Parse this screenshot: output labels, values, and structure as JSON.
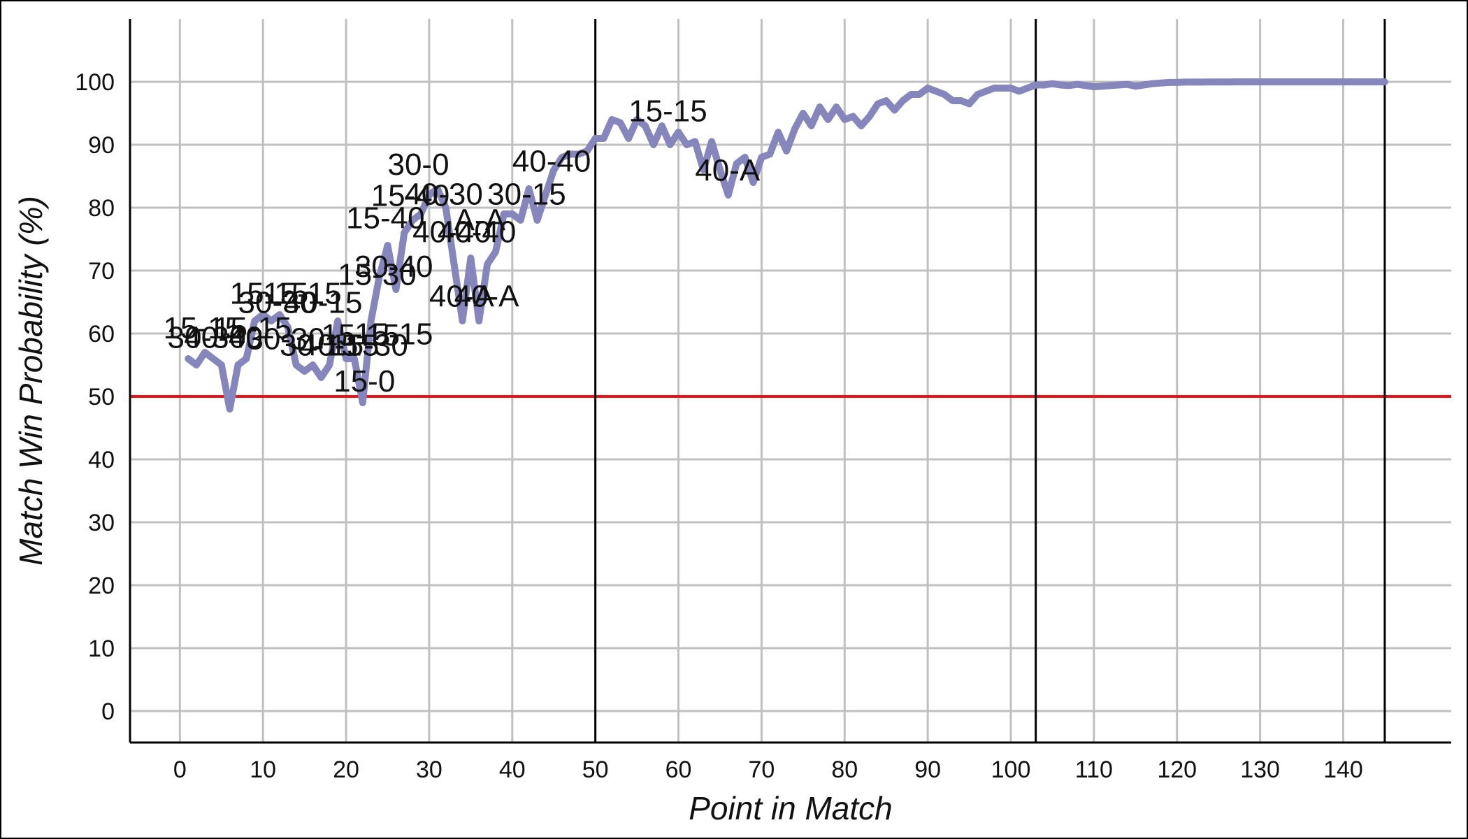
{
  "colors": {
    "background": "#ffffff",
    "grid": "#c0c0c0",
    "axis": "#000000",
    "line": "#8686bd",
    "reference_line": "#e8141b",
    "set_divider": "#000000"
  },
  "chart_data": {
    "type": "line",
    "title": "",
    "xlabel": "Point in Match",
    "ylabel": "Match Win Probability (%)",
    "xlim": [
      -6,
      153
    ],
    "ylim": [
      -5,
      110
    ],
    "xticks": [
      0,
      10,
      20,
      30,
      40,
      50,
      60,
      70,
      80,
      90,
      100,
      110,
      120,
      130,
      140
    ],
    "yticks": [
      0,
      10,
      20,
      30,
      40,
      50,
      60,
      70,
      80,
      90,
      100
    ],
    "grid": true,
    "legend": "none",
    "reference_line": {
      "y": 50
    },
    "set_dividers": [
      50,
      103,
      145
    ],
    "series": [
      {
        "x": [
          1,
          2,
          3,
          4,
          5,
          6,
          7,
          8,
          9,
          10,
          11,
          12,
          13,
          14,
          15,
          16,
          17,
          18,
          19,
          20,
          21,
          22,
          23,
          24,
          25,
          26,
          27,
          28,
          29,
          30,
          31,
          32,
          33,
          34,
          35,
          36,
          37,
          38,
          39,
          40,
          41,
          42,
          43,
          44,
          45,
          46,
          47,
          48,
          49,
          50,
          51,
          52,
          53,
          54,
          55,
          56,
          57,
          58,
          59,
          60,
          61,
          62,
          63,
          64,
          65,
          66,
          67,
          68,
          69,
          70,
          71,
          72,
          73,
          74,
          75,
          76,
          77,
          78,
          79,
          80,
          81,
          82,
          83,
          84,
          85,
          86,
          87,
          88,
          89,
          90,
          91,
          92,
          93,
          94,
          95,
          96,
          97,
          98,
          99,
          100,
          101,
          102,
          103,
          104,
          105,
          106,
          107,
          108,
          109,
          110,
          111,
          112,
          113,
          114,
          115,
          116,
          117,
          118,
          119,
          120,
          121,
          122,
          123,
          124,
          125,
          126,
          127,
          128,
          129,
          130,
          131,
          132,
          133,
          134,
          135,
          136,
          137,
          138,
          139,
          140,
          141,
          142,
          143,
          144,
          145
        ],
        "values": [
          56,
          55,
          57,
          56,
          55,
          48,
          55,
          56,
          62,
          63,
          62,
          63,
          61,
          55,
          54,
          55,
          53,
          55,
          62,
          56,
          56,
          49,
          62,
          69,
          74,
          67,
          76,
          78,
          79,
          82,
          83,
          80,
          71,
          62,
          72,
          62,
          71,
          73,
          79,
          79,
          78,
          83,
          78,
          82,
          86,
          88,
          88.5,
          88.5,
          89,
          91,
          91,
          94,
          93.5,
          91,
          94,
          93,
          90,
          93,
          90,
          92,
          90,
          90.5,
          86,
          90.5,
          86,
          82,
          87,
          88,
          84,
          88,
          88.5,
          92,
          89,
          92.5,
          95,
          93,
          96,
          94,
          96,
          94,
          94.5,
          93,
          94.5,
          96.5,
          97,
          95.5,
          97,
          98,
          98,
          99,
          98.5,
          98,
          97,
          97,
          96.5,
          98,
          98.5,
          99,
          99,
          99,
          98.5,
          99,
          99.5,
          99.5,
          99.7,
          99.5,
          99.4,
          99.6,
          99.4,
          99.2,
          99.3,
          99.4,
          99.5,
          99.6,
          99.3,
          99.5,
          99.7,
          99.8,
          99.9,
          99.9,
          99.95,
          99.95,
          99.95,
          99.98,
          99.98,
          99.98,
          99.99,
          99.99,
          99.99,
          99.99,
          99.99,
          99.99,
          99.99,
          99.99,
          99.99,
          99.99,
          99.99,
          99.99,
          99.99,
          99.99,
          99.99,
          99.99,
          99.99,
          99.99,
          99.99
        ]
      }
    ],
    "annotations": [
      {
        "text": "15-15",
        "x": -2,
        "y": 59.2
      },
      {
        "text": "30-30",
        "x": -1.5,
        "y": 57.7
      },
      {
        "text": "40-40",
        "x": 0.5,
        "y": 57.7
      },
      {
        "text": "15-15",
        "x": 4,
        "y": 59.2
      },
      {
        "text": "30-30",
        "x": 8,
        "y": 57.5
      },
      {
        "text": "15-15",
        "x": 6,
        "y": 64.7
      },
      {
        "text": "30-30",
        "x": 7,
        "y": 63.3
      },
      {
        "text": "15-15",
        "x": 10,
        "y": 64.7
      },
      {
        "text": "40-15",
        "x": 12.5,
        "y": 63.3
      },
      {
        "text": "30-15",
        "x": 12,
        "y": 56.5
      },
      {
        "text": "40-15",
        "x": 14.5,
        "y": 56.5
      },
      {
        "text": "15-15",
        "x": 17,
        "y": 58.1
      },
      {
        "text": "15-30",
        "x": 18,
        "y": 56.5
      },
      {
        "text": "15-15",
        "x": 21,
        "y": 58.3
      },
      {
        "text": "15-0",
        "x": 18.5,
        "y": 50.8
      },
      {
        "text": "15-30",
        "x": 19,
        "y": 67.7
      },
      {
        "text": "30-40",
        "x": 21,
        "y": 69.0
      },
      {
        "text": "15-40",
        "x": 20,
        "y": 76.7
      },
      {
        "text": "15-40",
        "x": 23,
        "y": 80.3
      },
      {
        "text": "30-0",
        "x": 25,
        "y": 85.2
      },
      {
        "text": "40-30",
        "x": 27,
        "y": 80.5
      },
      {
        "text": "40-40",
        "x": 28,
        "y": 74.5
      },
      {
        "text": "40-40",
        "x": 31,
        "y": 74.5
      },
      {
        "text": "A-A",
        "x": 33,
        "y": 76.4
      },
      {
        "text": "40-A",
        "x": 30,
        "y": 64.3
      },
      {
        "text": "40-A",
        "x": 33,
        "y": 64.3
      },
      {
        "text": "30-15",
        "x": 37,
        "y": 80.5
      },
      {
        "text": "40-40",
        "x": 40,
        "y": 85.7
      },
      {
        "text": "15-15",
        "x": 54,
        "y": 93.7
      },
      {
        "text": "40-A",
        "x": 62,
        "y": 84.3
      }
    ]
  }
}
